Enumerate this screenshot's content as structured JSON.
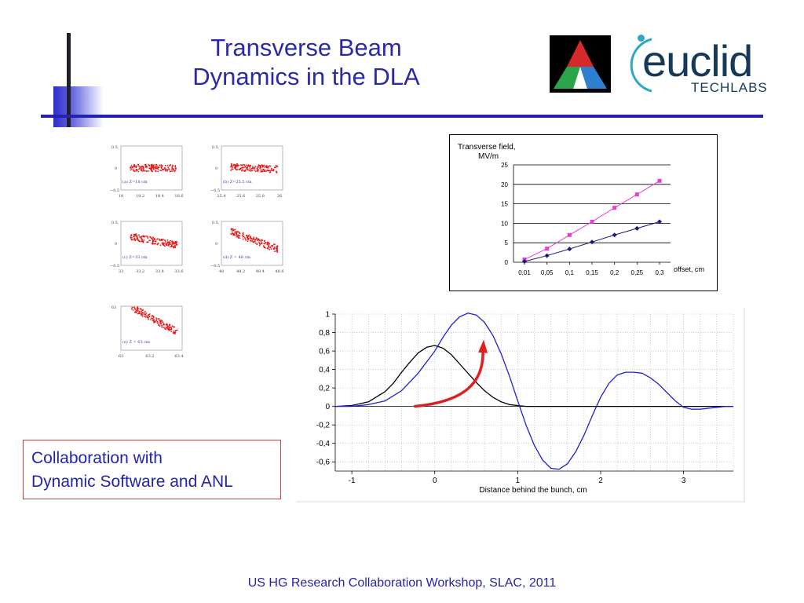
{
  "slide": {
    "title_line1": "Transverse Beam",
    "title_line2": "Dynamics in the DLA",
    "collab_line1": "Collaboration with",
    "collab_line2": "Dynamic Software and ANL",
    "footer": "US HG Research Collaboration Workshop, SLAC, 2011"
  },
  "logos": {
    "euclid_word": "euclid",
    "techlabs": "TECHLABS",
    "triangle_colors": [
      "#d62a2a",
      "#2e7fd0",
      "#2aa64a"
    ],
    "euclid_color": "#16395a",
    "euclid_dot_color": "#2fa7c8"
  },
  "sim_panels": [
    {
      "caption": "(a) Z=18 cm",
      "ytop": "0.5",
      "ymid": "0",
      "ybot": "−0.5",
      "xticks": [
        "18",
        "18.2",
        "18.4",
        "18.6"
      ]
    },
    {
      "caption": "(b) Z=25.5 cm",
      "ytop": "0.5",
      "ymid": "0",
      "ybot": "−0.5",
      "xticks": [
        "25.4",
        "25.6",
        "25.8",
        "26"
      ]
    },
    {
      "caption": "(c) Z=33 cm",
      "ytop": "0.5",
      "ymid": "0",
      "ybot": "−0.5",
      "xticks": [
        "33",
        "33.2",
        "33.4",
        "33.6"
      ]
    },
    {
      "caption": "(d) Z = 48 cm",
      "ytop": "0.5",
      "ymid": "0",
      "ybot": "−0.5",
      "xticks": [
        "48",
        "48.2",
        "48.4",
        "48.6"
      ]
    },
    {
      "caption": "(e) Z = 63 cm",
      "ytop": "63",
      "ymid": "",
      "ybot": "",
      "xticks": [
        "63",
        "63.2",
        "63.4"
      ]
    }
  ],
  "chart_data": [
    {
      "type": "line",
      "title": "Transverse field,\nMV/m",
      "title_line1": "Transverse field,",
      "title_line2": "MV/m",
      "xlabel": "offset, cm",
      "categories": [
        "0,01",
        "0,05",
        "0,1",
        "0,15",
        "0,2",
        "0,25",
        "0,3"
      ],
      "ylim": [
        0,
        25
      ],
      "yticks": [
        "0",
        "5",
        "10",
        "15",
        "20",
        "25"
      ],
      "grid": "horizontal",
      "series": [
        {
          "color": "#e83cd6",
          "marker": "square",
          "values": [
            0.7,
            3.5,
            7.0,
            10.4,
            14.0,
            17.4,
            20.9
          ]
        },
        {
          "color": "#1a1a7a",
          "marker": "diamond",
          "values": [
            0.2,
            1.7,
            3.4,
            5.2,
            7.0,
            8.7,
            10.4
          ]
        }
      ]
    },
    {
      "type": "line",
      "xlabel": "Distance behind the bunch, cm",
      "xlim": [
        -1.2,
        3.6
      ],
      "ylim": [
        -0.7,
        1.0
      ],
      "xticks": [
        "-1",
        "0",
        "1",
        "2",
        "3"
      ],
      "xtick_values": [
        -1,
        0,
        1,
        2,
        3
      ],
      "yticks": [
        "1",
        "0,8",
        "0,6",
        "0,4",
        "0,2",
        "0",
        "-0,2",
        "-0,4",
        "-0,6"
      ],
      "ytick_values": [
        1.0,
        0.8,
        0.6,
        0.4,
        0.2,
        0.0,
        -0.2,
        -0.4,
        -0.6
      ],
      "grid": "dotted",
      "arrow_color": "#e02020",
      "series": [
        {
          "color": "#000000",
          "x": [
            -1.2,
            -1.0,
            -0.8,
            -0.6,
            -0.5,
            -0.4,
            -0.3,
            -0.2,
            -0.1,
            0.0,
            0.1,
            0.2,
            0.3,
            0.4,
            0.5,
            0.6,
            0.7,
            0.8,
            0.9,
            1.0,
            1.1,
            1.2,
            1.5,
            2.0,
            2.5,
            3.0,
            3.6
          ],
          "y": [
            0.0,
            0.01,
            0.05,
            0.16,
            0.25,
            0.37,
            0.48,
            0.58,
            0.64,
            0.66,
            0.63,
            0.56,
            0.46,
            0.36,
            0.26,
            0.17,
            0.1,
            0.05,
            0.02,
            0.01,
            0.0,
            0.0,
            0.0,
            0.0,
            0.0,
            0.0,
            0.0
          ]
        },
        {
          "color": "#2020d0",
          "x": [
            -1.2,
            -1.0,
            -0.8,
            -0.6,
            -0.4,
            -0.2,
            0.0,
            0.1,
            0.2,
            0.3,
            0.4,
            0.5,
            0.6,
            0.7,
            0.8,
            0.9,
            1.0,
            1.1,
            1.2,
            1.3,
            1.4,
            1.5,
            1.6,
            1.7,
            1.8,
            1.9,
            2.0,
            2.1,
            2.2,
            2.3,
            2.4,
            2.5,
            2.6,
            2.7,
            2.8,
            2.9,
            3.0,
            3.1,
            3.2,
            3.3,
            3.4,
            3.5,
            3.6
          ],
          "y": [
            0.0,
            0.0,
            0.02,
            0.06,
            0.17,
            0.36,
            0.6,
            0.75,
            0.88,
            0.97,
            1.01,
            0.99,
            0.91,
            0.77,
            0.57,
            0.33,
            0.06,
            -0.2,
            -0.42,
            -0.58,
            -0.67,
            -0.68,
            -0.62,
            -0.49,
            -0.31,
            -0.1,
            0.1,
            0.25,
            0.34,
            0.37,
            0.37,
            0.36,
            0.31,
            0.24,
            0.15,
            0.06,
            -0.01,
            -0.03,
            -0.03,
            -0.02,
            -0.01,
            0.0,
            0.0
          ]
        }
      ]
    }
  ]
}
